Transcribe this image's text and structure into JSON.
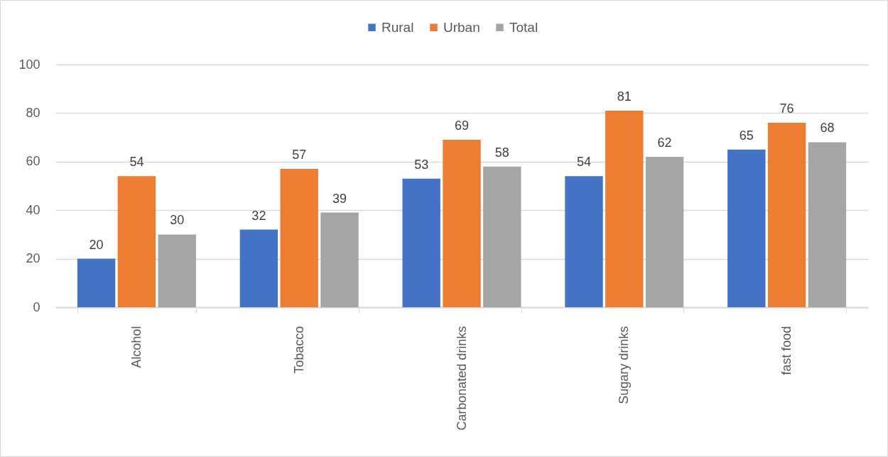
{
  "chart_data": {
    "type": "bar",
    "categories": [
      "Alcohol",
      "Tobacco",
      "Carbonated drinks",
      "Sugary drinks",
      "fast food"
    ],
    "series": [
      {
        "name": "Rural",
        "color": "#4472c4",
        "values": [
          20,
          32,
          53,
          54,
          65
        ]
      },
      {
        "name": "Urban",
        "color": "#ed7d31",
        "values": [
          54,
          57,
          69,
          81,
          76
        ]
      },
      {
        "name": "Total",
        "color": "#a5a5a5",
        "values": [
          30,
          39,
          58,
          62,
          68
        ]
      }
    ],
    "ylim": [
      0,
      100
    ],
    "yticks": [
      0,
      20,
      40,
      60,
      80,
      100
    ],
    "grid": "y",
    "legend": "top",
    "data_labels": true
  }
}
